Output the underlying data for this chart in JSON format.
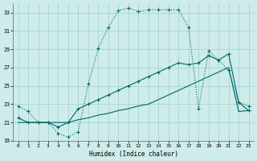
{
  "xlabel": "Humidex (Indice chaleur)",
  "bg_color": "#ceecea",
  "grid_color": "#a8d4d0",
  "line_color": "#006666",
  "xlim": [
    -0.5,
    23.5
  ],
  "ylim": [
    19,
    34
  ],
  "yticks": [
    19,
    21,
    23,
    25,
    27,
    29,
    31,
    33
  ],
  "xticks": [
    0,
    1,
    2,
    3,
    4,
    5,
    6,
    7,
    8,
    9,
    10,
    11,
    12,
    13,
    14,
    15,
    16,
    17,
    18,
    19,
    20,
    21,
    22,
    23
  ],
  "line1_x": [
    0,
    1,
    2,
    3,
    4,
    5,
    6,
    7,
    8,
    9,
    10,
    11,
    12,
    13,
    14,
    15,
    16,
    17,
    18,
    19,
    20,
    21,
    22,
    23
  ],
  "line1_y": [
    22.8,
    22.2,
    21.0,
    21.0,
    19.8,
    19.4,
    20.0,
    25.2,
    29.1,
    31.4,
    33.2,
    33.5,
    33.1,
    33.3,
    33.3,
    33.3,
    33.3,
    31.4,
    22.5,
    28.8,
    27.8,
    26.7,
    23.2,
    22.8
  ],
  "line2_x": [
    0,
    1,
    2,
    3,
    4,
    5,
    6,
    7,
    8,
    9,
    10,
    11,
    12,
    13,
    14,
    15,
    16,
    17,
    18,
    19,
    20,
    21,
    22,
    23
  ],
  "line2_y": [
    21.5,
    21.0,
    21.0,
    21.0,
    20.5,
    21.0,
    22.5,
    23.0,
    23.5,
    24.0,
    24.5,
    25.0,
    25.5,
    26.0,
    26.5,
    27.0,
    27.5,
    27.3,
    27.5,
    28.3,
    27.8,
    28.5,
    23.2,
    22.3
  ],
  "line3_x": [
    0,
    1,
    2,
    3,
    4,
    5,
    6,
    7,
    8,
    9,
    10,
    11,
    12,
    13,
    14,
    15,
    16,
    17,
    18,
    19,
    20,
    21,
    22,
    23
  ],
  "line3_y": [
    21.0,
    21.0,
    21.0,
    21.0,
    21.0,
    21.0,
    21.3,
    21.5,
    21.8,
    22.0,
    22.3,
    22.5,
    22.8,
    23.0,
    23.5,
    24.0,
    24.5,
    25.0,
    25.5,
    26.0,
    26.5,
    27.0,
    22.2,
    22.3
  ]
}
